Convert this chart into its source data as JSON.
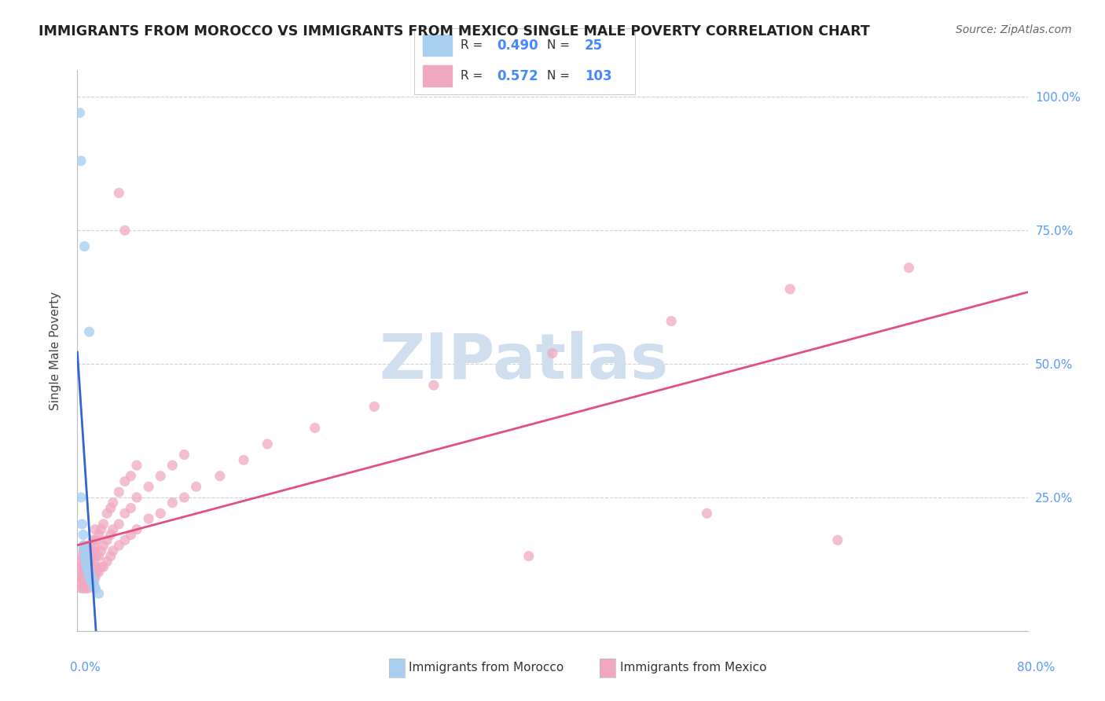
{
  "title": "IMMIGRANTS FROM MOROCCO VS IMMIGRANTS FROM MEXICO SINGLE MALE POVERTY CORRELATION CHART",
  "source": "Source: ZipAtlas.com",
  "ylabel": "Single Male Poverty",
  "morocco_color": "#a8cff0",
  "mexico_color": "#f0a8c0",
  "morocco_line_color": "#3366cc",
  "mexico_line_color": "#e05080",
  "morocco_R": 0.49,
  "morocco_N": 25,
  "mexico_R": 0.572,
  "mexico_N": 103,
  "right_tick_color": "#5599ff",
  "watermark": "ZIPatlas",
  "watermark_color": "#d0dff0",
  "background_color": "#ffffff",
  "grid_color": "#e8e8e8",
  "xmin": 0.0,
  "xmax": 0.8,
  "ymin": 0.0,
  "ymax": 1.05
}
